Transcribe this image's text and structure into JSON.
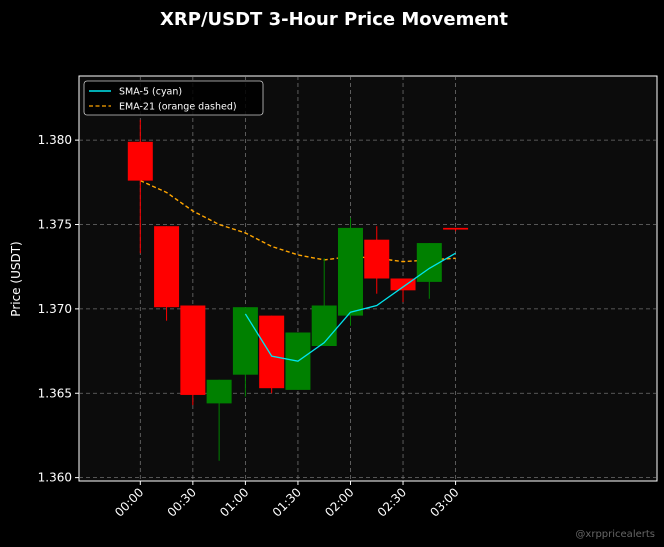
{
  "colors": {
    "background": "#000000",
    "plot_background": "#0c0c0c",
    "up": "#008000",
    "down": "#ff0000",
    "sma": "#00e5ee",
    "ema": "#ffa500",
    "grid": "#888888",
    "text": "#ffffff"
  },
  "watermark": "@xrppricealerts",
  "chart_data": {
    "type": "candlestick",
    "title": "XRP/USDT 3-Hour Price Movement",
    "xlabel": "",
    "ylabel": "Price (USDT)",
    "ylim": [
      1.3598,
      1.3838
    ],
    "xlim_minutes": [
      -35,
      295
    ],
    "grid": true,
    "grid_style": "dashed",
    "legend_position": "top-left",
    "y_ticks": [
      "1.360",
      "1.365",
      "1.370",
      "1.375",
      "1.380"
    ],
    "x_ticks": [
      "00:00",
      "00:30",
      "01:00",
      "01:30",
      "02:00",
      "02:30",
      "03:00"
    ],
    "candles": [
      {
        "time": "00:00",
        "open": 1.3799,
        "high": 1.3812,
        "low": 1.3733,
        "close": 1.3776
      },
      {
        "time": "00:15",
        "open": 1.3749,
        "high": 1.3749,
        "low": 1.3693,
        "close": 1.3701
      },
      {
        "time": "00:30",
        "open": 1.3702,
        "high": 1.3702,
        "low": 1.3643,
        "close": 1.3649
      },
      {
        "time": "00:45",
        "open": 1.3644,
        "high": 1.3658,
        "low": 1.361,
        "close": 1.3658
      },
      {
        "time": "01:00",
        "open": 1.3661,
        "high": 1.3701,
        "low": 1.3648,
        "close": 1.3701
      },
      {
        "time": "01:15",
        "open": 1.3696,
        "high": 1.3696,
        "low": 1.365,
        "close": 1.3653
      },
      {
        "time": "01:30",
        "open": 1.3652,
        "high": 1.3686,
        "low": 1.3652,
        "close": 1.3686
      },
      {
        "time": "01:45",
        "open": 1.3678,
        "high": 1.373,
        "low": 1.3678,
        "close": 1.3702
      },
      {
        "time": "02:00",
        "open": 1.3696,
        "high": 1.3754,
        "low": 1.369,
        "close": 1.3748
      },
      {
        "time": "02:15",
        "open": 1.3741,
        "high": 1.3749,
        "low": 1.3709,
        "close": 1.3718
      },
      {
        "time": "02:30",
        "open": 1.3718,
        "high": 1.3718,
        "low": 1.3704,
        "close": 1.3711
      },
      {
        "time": "02:45",
        "open": 1.3716,
        "high": 1.3739,
        "low": 1.3706,
        "close": 1.3739
      },
      {
        "time": "03:00",
        "open": 1.3748,
        "high": 1.3748,
        "low": 1.3746,
        "close": 1.3747
      }
    ],
    "series": [
      {
        "name": "SMA-5 (cyan)",
        "style": "solid",
        "color": "#00e5ee",
        "x": [
          "01:00",
          "01:15",
          "01:30",
          "01:45",
          "02:00",
          "02:15",
          "02:30",
          "02:45",
          "03:00"
        ],
        "values": [
          1.3697,
          1.3672,
          1.3669,
          1.368,
          1.3698,
          1.3702,
          1.3713,
          1.3724,
          1.3733
        ]
      },
      {
        "name": "EMA-21 (orange dashed)",
        "style": "dashed",
        "color": "#ffa500",
        "x": [
          "00:00",
          "00:15",
          "00:30",
          "00:45",
          "01:00",
          "01:15",
          "01:30",
          "01:45",
          "02:00",
          "02:15",
          "02:30",
          "02:45",
          "03:00"
        ],
        "values": [
          1.3776,
          1.3769,
          1.3758,
          1.375,
          1.3745,
          1.3737,
          1.3732,
          1.3729,
          1.3731,
          1.373,
          1.3728,
          1.3729,
          1.373
        ]
      }
    ]
  }
}
